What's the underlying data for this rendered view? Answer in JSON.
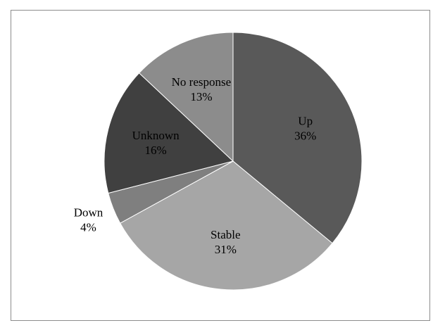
{
  "chart_data": {
    "type": "pie",
    "title": "",
    "start_angle_deg": 0,
    "direction": "clockwise",
    "legend": "none",
    "slices": [
      {
        "label": "Up",
        "value": 36,
        "value_label": "36%",
        "color": "#595959",
        "label_color": "#000000",
        "label_pos": "inside"
      },
      {
        "label": "Stable",
        "value": 31,
        "value_label": "31%",
        "color": "#a6a6a6",
        "label_color": "#000000",
        "label_pos": "inside"
      },
      {
        "label": "Down",
        "value": 4,
        "value_label": "4%",
        "color": "#7f7f7f",
        "label_color": "#000000",
        "label_pos": "outside"
      },
      {
        "label": "Unknown",
        "value": 16,
        "value_label": "16%",
        "color": "#404040",
        "label_color": "#000000",
        "label_pos": "inside"
      },
      {
        "label": "No response",
        "value": 13,
        "value_label": "13%",
        "color": "#8c8c8c",
        "label_color": "#000000",
        "label_pos": "inside"
      }
    ]
  }
}
